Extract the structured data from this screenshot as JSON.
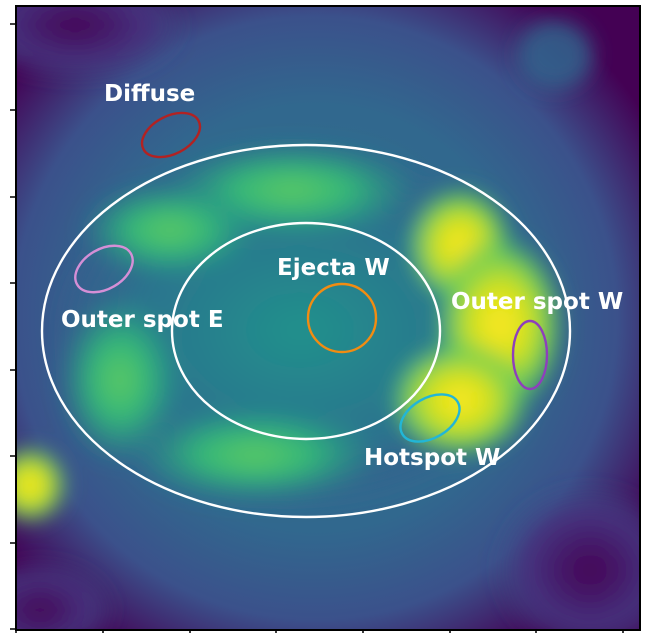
{
  "image": {
    "colormap": "viridis",
    "colors": {
      "background": "#440154",
      "mid": "#31688e",
      "bright": "#35b779",
      "peak": "#fde725",
      "frame": "#000000"
    }
  },
  "annotations": {
    "diffuse": "Diffuse",
    "ejecta_w": "Ejecta W",
    "outer_spot_e": "Outer spot E",
    "outer_spot_w": "Outer spot W",
    "hotspot_w": "Hotspot W"
  },
  "regions": [
    {
      "id": "diffuse",
      "color": "#b22222"
    },
    {
      "id": "outer-spot-e",
      "color": "#d58fd6"
    },
    {
      "id": "ejecta-w",
      "color": "#f28c11"
    },
    {
      "id": "outer-spot-w",
      "color": "#8e3fbc"
    },
    {
      "id": "hotspot-w",
      "color": "#22b6d6"
    },
    {
      "id": "inner-ring",
      "color": "#ffffff"
    },
    {
      "id": "outer-ring",
      "color": "#ffffff"
    }
  ]
}
